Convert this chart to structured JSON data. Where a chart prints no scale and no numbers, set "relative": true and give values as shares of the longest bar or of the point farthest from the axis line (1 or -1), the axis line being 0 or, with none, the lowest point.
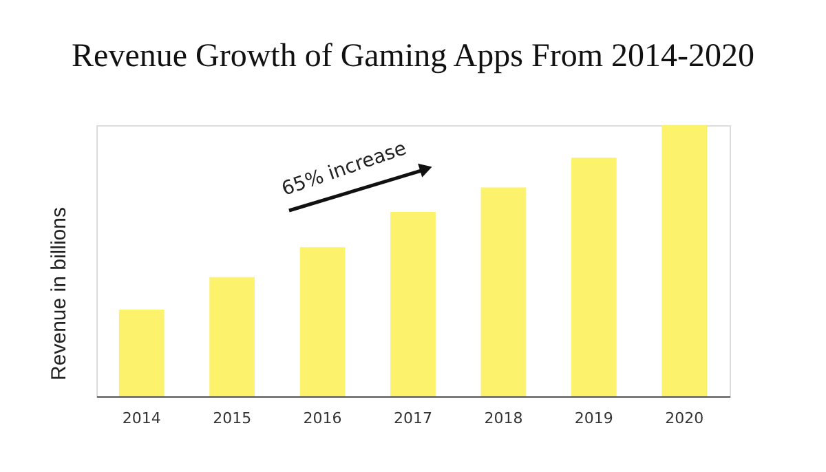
{
  "chart_data": {
    "type": "bar",
    "title": "Revenue Growth of Gaming Apps From 2014-2020",
    "ylabel": "Revenue in billions",
    "categories": [
      "2014",
      "2015",
      "2016",
      "2017",
      "2018",
      "2019",
      "2020"
    ],
    "values": [
      0.32,
      0.44,
      0.55,
      0.68,
      0.77,
      0.88,
      1
    ],
    "color": "#fdf26b",
    "relative": true,
    "grid": false,
    "annotations": [
      "65% increase"
    ]
  }
}
